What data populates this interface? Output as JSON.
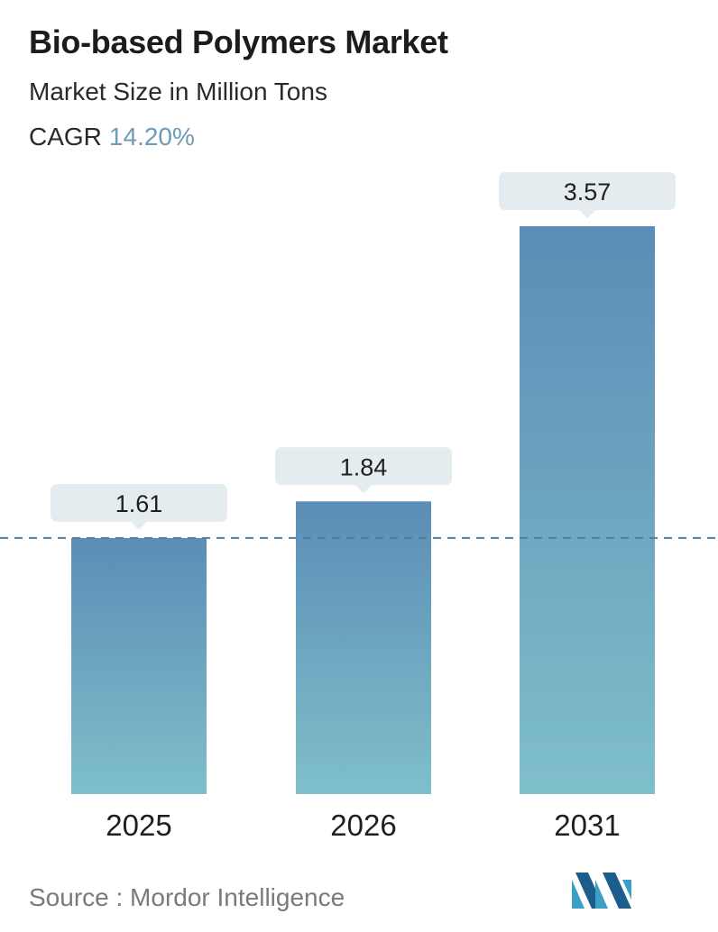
{
  "header": {
    "title": "Bio-based Polymers Market",
    "subtitle": "Market Size in Million Tons",
    "cagr_label": "CAGR",
    "cagr_value": "14.20%"
  },
  "chart_data": {
    "type": "bar",
    "categories": [
      "2025",
      "2026",
      "2031"
    ],
    "values": [
      1.61,
      1.84,
      3.57
    ],
    "value_labels": [
      "1.61",
      "1.84",
      "3.57"
    ],
    "title": "Bio-based Polymers Market",
    "subtitle": "Market Size in Million Tons",
    "xlabel": "",
    "ylabel": "",
    "ylim": [
      0,
      3.57
    ],
    "grid": false,
    "reference_line": {
      "value": 1.61,
      "style": "dashed"
    },
    "colors": {
      "bar_top": "#5b8db6",
      "bar_bottom": "#7fbfca",
      "label_bg": "#e4ecef",
      "cagr": "#6f9ab8",
      "reference": "#4f7f9f"
    }
  },
  "footer": {
    "source": "Source :  Mordor Intelligence"
  },
  "logo": {
    "icon": "mordor-intelligence-logo"
  }
}
